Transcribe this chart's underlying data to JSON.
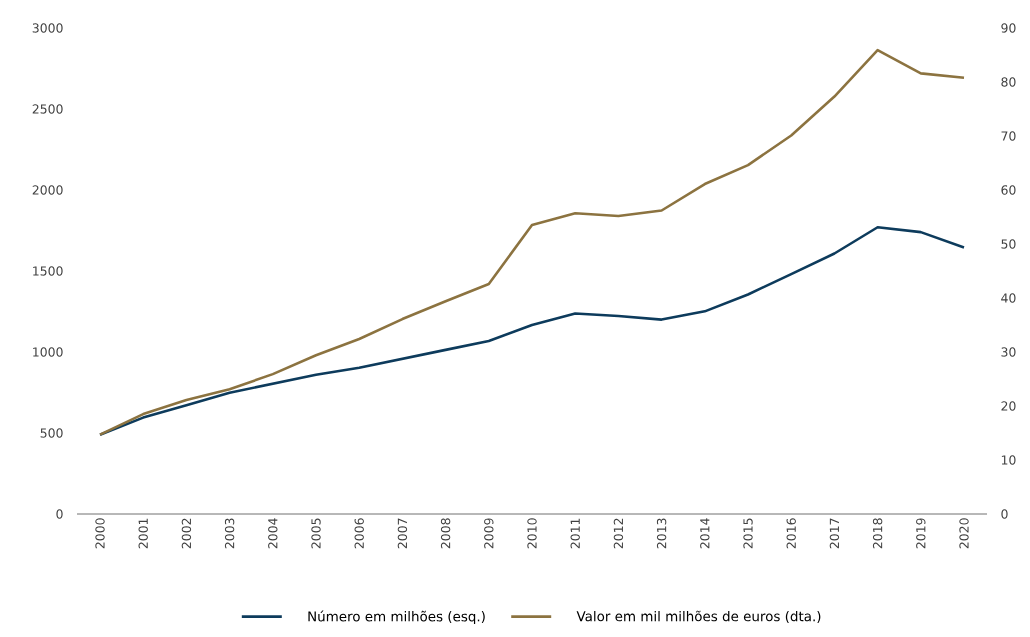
{
  "chart_data": {
    "type": "line",
    "categories": [
      "2000",
      "2001",
      "2002",
      "2003",
      "2004",
      "2005",
      "2006",
      "2007",
      "2008",
      "2009",
      "2010",
      "2011",
      "2012",
      "2013",
      "2014",
      "2015",
      "2016",
      "2017",
      "2018",
      "2019",
      "2020"
    ],
    "series": [
      {
        "name": "Número em milhões (esq.)",
        "color": "#0d3b5c",
        "values": [
          489,
          595,
          672,
          749,
          804,
          859,
          903,
          958,
          1013,
          1068,
          1167,
          1238,
          1222,
          1200,
          1251,
          1355,
          1481,
          1608,
          1770,
          1740,
          1645
        ]
      },
      {
        "name": "Valor em mil milhões de euros (dta.)",
        "color": "#8c7340",
        "axis": "y2",
        "values": [
          14.7,
          18.5,
          21.1,
          23.1,
          25.9,
          29.4,
          32.4,
          36.1,
          39.4,
          42.6,
          53.5,
          55.7,
          55.2,
          56.2,
          61.1,
          64.6,
          70.1,
          77.3,
          85.9,
          81.6,
          80.8
        ]
      }
    ],
    "ylim": [
      0,
      3000
    ],
    "yticks": [
      0,
      500,
      1000,
      1500,
      2000,
      2500,
      3000
    ],
    "y2lim": [
      0,
      90
    ],
    "y2ticks": [
      0,
      10,
      20,
      30,
      40,
      50,
      60,
      70,
      80,
      90
    ],
    "legend": "bottom",
    "grid": false
  }
}
